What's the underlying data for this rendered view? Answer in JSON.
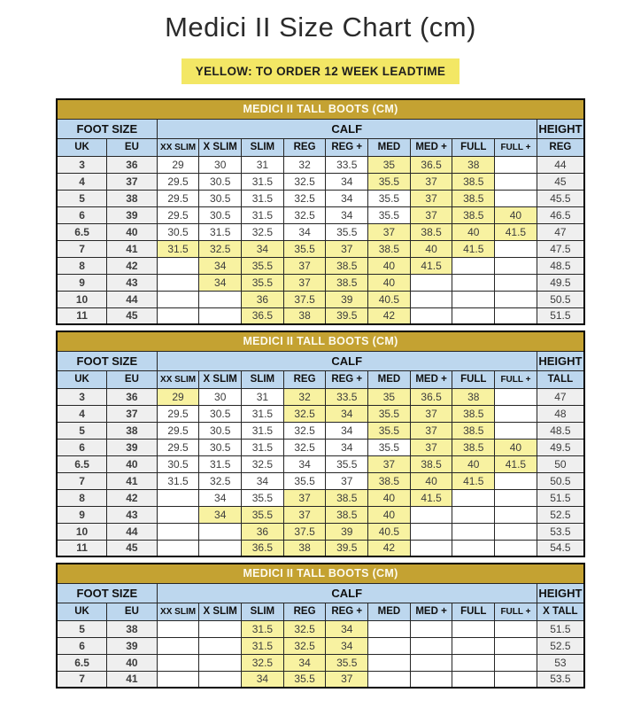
{
  "page": {
    "title": "Medici II Size Chart (cm)",
    "banner": "YELLOW: TO ORDER 12 WEEK LEADTIME"
  },
  "colors": {
    "table_title_gold": "#C4A232",
    "header_blue": "#BDD7EE",
    "leadtime_cell_yellow": "#F8F2A1",
    "banner_yellow": "#F3E765",
    "size_column_gray": "#EFEFEF"
  },
  "group_headers": {
    "foot_size": "FOOT SIZE",
    "calf": "CALF",
    "height": "HEIGHT"
  },
  "foot_columns": [
    "UK",
    "EU"
  ],
  "calf_columns": [
    "XX SLIM",
    "X SLIM",
    "SLIM",
    "REG",
    "REG +",
    "MED",
    "MED +",
    "FULL",
    "FULL +"
  ],
  "tables": [
    {
      "title": "MEDICI II TALL BOOTS (CM)",
      "height_label": "REG",
      "rows": [
        {
          "uk": "3",
          "eu": "36",
          "calf": [
            "29",
            "30",
            "31",
            "32",
            "33.5",
            "35",
            "36.5",
            "38",
            ""
          ],
          "leadtime": [
            0,
            0,
            0,
            0,
            0,
            1,
            1,
            1,
            0
          ],
          "height": "44"
        },
        {
          "uk": "4",
          "eu": "37",
          "calf": [
            "29.5",
            "30.5",
            "31.5",
            "32.5",
            "34",
            "35.5",
            "37",
            "38.5",
            ""
          ],
          "leadtime": [
            0,
            0,
            0,
            0,
            0,
            1,
            1,
            1,
            0
          ],
          "height": "45"
        },
        {
          "uk": "5",
          "eu": "38",
          "calf": [
            "29.5",
            "30.5",
            "31.5",
            "32.5",
            "34",
            "35.5",
            "37",
            "38.5",
            ""
          ],
          "leadtime": [
            0,
            0,
            0,
            0,
            0,
            0,
            1,
            1,
            0
          ],
          "height": "45.5"
        },
        {
          "uk": "6",
          "eu": "39",
          "calf": [
            "29.5",
            "30.5",
            "31.5",
            "32.5",
            "34",
            "35.5",
            "37",
            "38.5",
            "40"
          ],
          "leadtime": [
            0,
            0,
            0,
            0,
            0,
            0,
            1,
            1,
            1
          ],
          "height": "46.5"
        },
        {
          "uk": "6.5",
          "eu": "40",
          "calf": [
            "30.5",
            "31.5",
            "32.5",
            "34",
            "35.5",
            "37",
            "38.5",
            "40",
            "41.5"
          ],
          "leadtime": [
            0,
            0,
            0,
            0,
            0,
            1,
            1,
            1,
            1
          ],
          "height": "47"
        },
        {
          "uk": "7",
          "eu": "41",
          "calf": [
            "31.5",
            "32.5",
            "34",
            "35.5",
            "37",
            "38.5",
            "40",
            "41.5",
            ""
          ],
          "leadtime": [
            1,
            1,
            1,
            1,
            1,
            1,
            1,
            1,
            0
          ],
          "height": "47.5"
        },
        {
          "uk": "8",
          "eu": "42",
          "calf": [
            "",
            "34",
            "35.5",
            "37",
            "38.5",
            "40",
            "41.5",
            "",
            ""
          ],
          "leadtime": [
            0,
            1,
            1,
            1,
            1,
            1,
            1,
            0,
            0
          ],
          "height": "48.5"
        },
        {
          "uk": "9",
          "eu": "43",
          "calf": [
            "",
            "34",
            "35.5",
            "37",
            "38.5",
            "40",
            "",
            "",
            ""
          ],
          "leadtime": [
            0,
            1,
            1,
            1,
            1,
            1,
            0,
            0,
            0
          ],
          "height": "49.5"
        },
        {
          "uk": "10",
          "eu": "44",
          "calf": [
            "",
            "",
            "36",
            "37.5",
            "39",
            "40.5",
            "",
            "",
            ""
          ],
          "leadtime": [
            0,
            0,
            1,
            1,
            1,
            1,
            0,
            0,
            0
          ],
          "height": "50.5"
        },
        {
          "uk": "11",
          "eu": "45",
          "calf": [
            "",
            "",
            "36.5",
            "38",
            "39.5",
            "42",
            "",
            "",
            ""
          ],
          "leadtime": [
            0,
            0,
            1,
            1,
            1,
            1,
            0,
            0,
            0
          ],
          "height": "51.5"
        }
      ]
    },
    {
      "title": "MEDICI II TALL BOOTS (CM)",
      "height_label": "TALL",
      "rows": [
        {
          "uk": "3",
          "eu": "36",
          "calf": [
            "29",
            "30",
            "31",
            "32",
            "33.5",
            "35",
            "36.5",
            "38",
            ""
          ],
          "leadtime": [
            1,
            0,
            0,
            1,
            1,
            1,
            1,
            1,
            0
          ],
          "height": "47"
        },
        {
          "uk": "4",
          "eu": "37",
          "calf": [
            "29.5",
            "30.5",
            "31.5",
            "32.5",
            "34",
            "35.5",
            "37",
            "38.5",
            ""
          ],
          "leadtime": [
            0,
            0,
            0,
            1,
            1,
            1,
            1,
            1,
            0
          ],
          "height": "48"
        },
        {
          "uk": "5",
          "eu": "38",
          "calf": [
            "29.5",
            "30.5",
            "31.5",
            "32.5",
            "34",
            "35.5",
            "37",
            "38.5",
            ""
          ],
          "leadtime": [
            0,
            0,
            0,
            0,
            0,
            1,
            1,
            1,
            0
          ],
          "height": "48.5"
        },
        {
          "uk": "6",
          "eu": "39",
          "calf": [
            "29.5",
            "30.5",
            "31.5",
            "32.5",
            "34",
            "35.5",
            "37",
            "38.5",
            "40"
          ],
          "leadtime": [
            0,
            0,
            0,
            0,
            0,
            0,
            1,
            1,
            1
          ],
          "height": "49.5"
        },
        {
          "uk": "6.5",
          "eu": "40",
          "calf": [
            "30.5",
            "31.5",
            "32.5",
            "34",
            "35.5",
            "37",
            "38.5",
            "40",
            "41.5"
          ],
          "leadtime": [
            0,
            0,
            0,
            0,
            0,
            1,
            1,
            1,
            1
          ],
          "height": "50"
        },
        {
          "uk": "7",
          "eu": "41",
          "calf": [
            "31.5",
            "32.5",
            "34",
            "35.5",
            "37",
            "38.5",
            "40",
            "41.5",
            ""
          ],
          "leadtime": [
            0,
            0,
            0,
            0,
            0,
            1,
            1,
            1,
            0
          ],
          "height": "50.5"
        },
        {
          "uk": "8",
          "eu": "42",
          "calf": [
            "",
            "34",
            "35.5",
            "37",
            "38.5",
            "40",
            "41.5",
            "",
            ""
          ],
          "leadtime": [
            0,
            0,
            0,
            1,
            1,
            1,
            1,
            0,
            0
          ],
          "height": "51.5"
        },
        {
          "uk": "9",
          "eu": "43",
          "calf": [
            "",
            "34",
            "35.5",
            "37",
            "38.5",
            "40",
            "",
            "",
            ""
          ],
          "leadtime": [
            0,
            1,
            1,
            1,
            1,
            1,
            0,
            0,
            0
          ],
          "height": "52.5"
        },
        {
          "uk": "10",
          "eu": "44",
          "calf": [
            "",
            "",
            "36",
            "37.5",
            "39",
            "40.5",
            "",
            "",
            ""
          ],
          "leadtime": [
            0,
            0,
            1,
            1,
            1,
            1,
            0,
            0,
            0
          ],
          "height": "53.5"
        },
        {
          "uk": "11",
          "eu": "45",
          "calf": [
            "",
            "",
            "36.5",
            "38",
            "39.5",
            "42",
            "",
            "",
            ""
          ],
          "leadtime": [
            0,
            0,
            1,
            1,
            1,
            1,
            0,
            0,
            0
          ],
          "height": "54.5"
        }
      ]
    },
    {
      "title": "MEDICI II TALL BOOTS (CM)",
      "height_label": "X TALL",
      "rows": [
        {
          "uk": "5",
          "eu": "38",
          "calf": [
            "",
            "",
            "31.5",
            "32.5",
            "34",
            "",
            "",
            "",
            ""
          ],
          "leadtime": [
            0,
            0,
            1,
            1,
            1,
            0,
            0,
            0,
            0
          ],
          "height": "51.5"
        },
        {
          "uk": "6",
          "eu": "39",
          "calf": [
            "",
            "",
            "31.5",
            "32.5",
            "34",
            "",
            "",
            "",
            ""
          ],
          "leadtime": [
            0,
            0,
            1,
            1,
            1,
            0,
            0,
            0,
            0
          ],
          "height": "52.5"
        },
        {
          "uk": "6.5",
          "eu": "40",
          "calf": [
            "",
            "",
            "32.5",
            "34",
            "35.5",
            "",
            "",
            "",
            ""
          ],
          "leadtime": [
            0,
            0,
            1,
            1,
            1,
            0,
            0,
            0,
            0
          ],
          "height": "53"
        },
        {
          "uk": "7",
          "eu": "41",
          "calf": [
            "",
            "",
            "34",
            "35.5",
            "37",
            "",
            "",
            "",
            ""
          ],
          "leadtime": [
            0,
            0,
            1,
            1,
            1,
            0,
            0,
            0,
            0
          ],
          "height": "53.5"
        }
      ]
    }
  ]
}
